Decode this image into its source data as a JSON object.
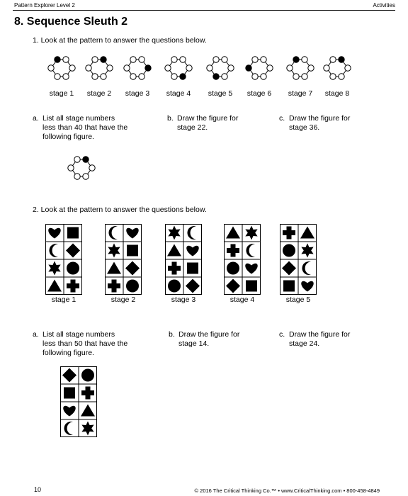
{
  "header": {
    "left": "Pattern Explorer Level 2",
    "right": "Activities"
  },
  "title": "8.  Sequence Sleuth 2",
  "problem1": {
    "prompt": "1.  Look at the pattern to answer the questions below.",
    "stages": [
      {
        "label": "stage 1",
        "filled": 0
      },
      {
        "label": "stage 2",
        "filled": 1
      },
      {
        "label": "stage 3",
        "filled": 2
      },
      {
        "label": "stage 4",
        "filled": 3
      },
      {
        "label": "stage 5",
        "filled": 4
      },
      {
        "label": "stage 6",
        "filled": 5
      },
      {
        "label": "stage 7",
        "filled": 0
      },
      {
        "label": "stage 8",
        "filled": 1
      }
    ],
    "questions": [
      {
        "letter": "a.",
        "text": "List all stage numbers\nless than 40 that have the\nfollowing figure."
      },
      {
        "letter": "b.",
        "text": "Draw the figure for\nstage 22."
      },
      {
        "letter": "c.",
        "text": "Draw the figure for\nstage 36."
      }
    ],
    "target_filled": 1
  },
  "problem2": {
    "prompt": "2.  Look at the pattern to answer the questions below.",
    "stages": [
      {
        "label": "stage 1",
        "shapes": [
          "heart",
          "square",
          "moon",
          "diamond",
          "star",
          "circle",
          "triangle",
          "cross"
        ]
      },
      {
        "label": "stage 2",
        "shapes": [
          "moon",
          "heart",
          "star",
          "square",
          "triangle",
          "diamond",
          "cross",
          "circle"
        ]
      },
      {
        "label": "stage 3",
        "shapes": [
          "star",
          "moon",
          "triangle",
          "heart",
          "cross",
          "square",
          "circle",
          "diamond"
        ]
      },
      {
        "label": "stage 4",
        "shapes": [
          "triangle",
          "star",
          "cross",
          "moon",
          "circle",
          "heart",
          "diamond",
          "square"
        ]
      },
      {
        "label": "stage 5",
        "shapes": [
          "cross",
          "triangle",
          "circle",
          "star",
          "diamond",
          "moon",
          "square",
          "heart"
        ]
      }
    ],
    "questions": [
      {
        "letter": "a.",
        "text": "List all stage numbers\nless than 50 that have the\nfollowing figure."
      },
      {
        "letter": "b.",
        "text": "Draw the figure for\nstage 14."
      },
      {
        "letter": "c.",
        "text": "Draw the figure for\nstage 24."
      }
    ],
    "target_shapes": [
      "diamond",
      "circle",
      "square",
      "cross",
      "heart",
      "triangle",
      "moon",
      "star"
    ]
  },
  "footer": {
    "page": "10",
    "copyright": "© 2016 The Critical Thinking Co.™ • www.CriticalThinking.com • 800-458-4849"
  }
}
